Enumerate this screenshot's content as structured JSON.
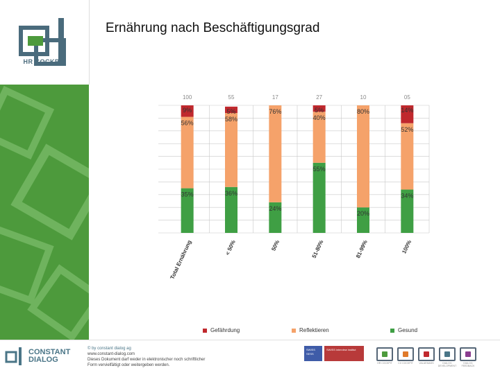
{
  "header": {
    "title": "Ernährung nach Beschäftigungsgrad"
  },
  "logo": {
    "text": "HR COCKPIT"
  },
  "colors": {
    "gefaehrdung": "#c0282d",
    "reflektieren": "#f5a26a",
    "gesund": "#3f9f44",
    "sidebar_green": "#4d9a3c"
  },
  "chart_data": {
    "type": "bar",
    "stacked": true,
    "normalized": true,
    "categories": [
      "Total Ernährung",
      "< 50%",
      "50%",
      "51-80%",
      "81-99%",
      "100%"
    ],
    "n_values": [
      "100",
      "55",
      "17",
      "27",
      "10",
      "05"
    ],
    "series": [
      {
        "name": "Gesund",
        "values": [
          35,
          36,
          24,
          55,
          20,
          34
        ]
      },
      {
        "name": "Reflektieren",
        "values": [
          56,
          58,
          76,
          40,
          80,
          52
        ]
      },
      {
        "name": "Gefährdung",
        "values": [
          9,
          5,
          0,
          5,
          0,
          14
        ]
      }
    ],
    "labels": [
      [
        "35%",
        "56%",
        "9%"
      ],
      [
        "36%",
        "58%",
        "5%"
      ],
      [
        "24%",
        "76%",
        ""
      ],
      [
        "55%",
        "40%",
        "5%"
      ],
      [
        "20%",
        "80%",
        ""
      ],
      [
        "34%",
        "52%",
        "14%"
      ]
    ],
    "ylim": [
      0,
      100
    ],
    "grid": true,
    "legend_position": "bottom"
  },
  "legend": {
    "items": [
      {
        "label": "Gefährdung",
        "color": "#c0282d"
      },
      {
        "label": "Reflektieren",
        "color": "#f5a26a"
      },
      {
        "label": "Gesund",
        "color": "#3f9f44"
      }
    ]
  },
  "footer": {
    "brand_line1": "CONSTANT",
    "brand_line2": "DIALOG",
    "copyright_lines": [
      "© by constant dialog ag",
      "www.constant-dialog.com",
      "Dieses Dokument darf weder in elektronischer noch schriftlicher",
      "Form vervielfältigt oder weitergeben werden."
    ],
    "badge_a": "SWISS SESS",
    "badge_b": "SWISS interview institut",
    "products": [
      {
        "caption": "HR COCKPIT",
        "color": "#4d9a3c"
      },
      {
        "caption": "CX COCKPIT",
        "color": "#e07a2a"
      },
      {
        "caption": "VALUEMASS",
        "color": "#c0282d"
      },
      {
        "caption": "DIALOG DEVELOPMENT",
        "color": "#4a7587"
      },
      {
        "caption": "DIALOG FEEDBACK",
        "color": "#8a3d8f"
      }
    ]
  }
}
